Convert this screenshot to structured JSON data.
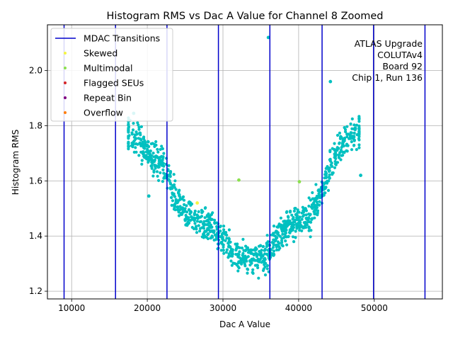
{
  "chart_data": {
    "type": "scatter",
    "title": "Histogram RMS vs Dac A Value for Channel 8 Zoomed",
    "xlabel": "Dac A Value",
    "ylabel": "Histogram RMS",
    "xlim": [
      6800,
      59000
    ],
    "ylim": [
      1.172,
      2.166
    ],
    "xticks": [
      10000,
      20000,
      30000,
      40000,
      50000
    ],
    "yticks": [
      1.2,
      1.4,
      1.6,
      1.8,
      2.0
    ],
    "grid": true,
    "legend_position": "upper-left",
    "legend": [
      {
        "label": "MDAC Transitions",
        "kind": "line",
        "color": "#0000cc"
      },
      {
        "label": "Skewed",
        "kind": "point",
        "color": "#f5f542"
      },
      {
        "label": "Multimodal",
        "kind": "point",
        "color": "#8be04e"
      },
      {
        "label": "Flagged SEUs",
        "kind": "point",
        "color": "#d62728"
      },
      {
        "label": "Repeat Bin",
        "kind": "point",
        "color": "#800080"
      },
      {
        "label": "Overflow",
        "kind": "point",
        "color": "#ff7f0e"
      }
    ],
    "annotation": [
      "ATLAS Upgrade",
      "COLUTAv4",
      "Board 92",
      "Chip 1, Run 136"
    ],
    "mdac_transitions": [
      9000,
      15800,
      22600,
      29400,
      36200,
      43100,
      49900,
      56700
    ],
    "scatter_color": "#00c0c0",
    "profile": {
      "x": [
        17500,
        19000,
        20500,
        22000,
        23500,
        25000,
        27000,
        29000,
        30500,
        32000,
        34000,
        35500,
        37000,
        38500,
        40000,
        41500,
        43000,
        44500,
        46000,
        48000
      ],
      "y": [
        1.78,
        1.74,
        1.69,
        1.66,
        1.56,
        1.48,
        1.45,
        1.42,
        1.36,
        1.33,
        1.32,
        1.32,
        1.38,
        1.44,
        1.45,
        1.47,
        1.56,
        1.68,
        1.74,
        1.78
      ],
      "spread": [
        0.05,
        0.05,
        0.05,
        0.06,
        0.06,
        0.05,
        0.05,
        0.05,
        0.05,
        0.05,
        0.05,
        0.05,
        0.05,
        0.05,
        0.06,
        0.06,
        0.05,
        0.05,
        0.05,
        0.05
      ]
    },
    "n_points": 1100,
    "special_points": [
      {
        "x": 36000,
        "y": 2.12,
        "category": "Outlier"
      },
      {
        "x": 44200,
        "y": 1.96,
        "category": "Outlier"
      },
      {
        "x": 48200,
        "y": 1.62,
        "category": "Outlier"
      },
      {
        "x": 20200,
        "y": 1.545,
        "category": "Outlier"
      },
      {
        "x": 32100,
        "y": 1.603,
        "category": "Multimodal"
      },
      {
        "x": 40100,
        "y": 1.597,
        "category": "Multimodal"
      },
      {
        "x": 26600,
        "y": 1.52,
        "category": "Skewed"
      },
      {
        "x": 18200,
        "y": 1.845,
        "category": "Outlier"
      }
    ]
  }
}
